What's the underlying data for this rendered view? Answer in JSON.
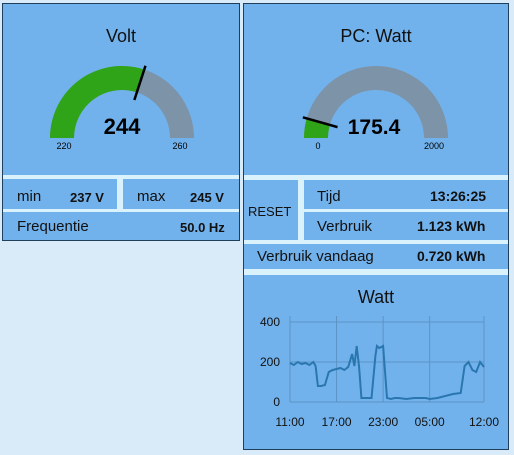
{
  "volt_panel": {
    "title": "Volt",
    "value": 244,
    "min_scale": "220",
    "max_scale": "260",
    "gauge_min": 220,
    "gauge_max": 260,
    "min_label": "min",
    "min_value": "237 V",
    "max_label": "max",
    "max_value": "245 V",
    "freq_label": "Frequentie",
    "freq_value": "50.0 Hz"
  },
  "watt_panel": {
    "title": "PC: Watt",
    "value": 175.4,
    "min_scale": "0",
    "max_scale": "2000",
    "gauge_min": 0,
    "gauge_max": 2000,
    "reset_label": "RESET",
    "tijd_label": "Tijd",
    "tijd_value": "13:26:25",
    "verbruik_label": "Verbruik",
    "verbruik_value": "1.123 kWh",
    "vandaag_label": "Verbruik vandaag",
    "vandaag_value": "0.720 kWh"
  },
  "colors": {
    "panel_bg": "#72b2ec",
    "page_bg": "#d9ebf9",
    "gauge_fill": "#2fa418",
    "gauge_track": "#7c93a8",
    "line": "#2a77b0"
  },
  "chart_data": {
    "type": "line",
    "title": "Watt",
    "xlabel": "",
    "ylabel": "",
    "ylim": [
      0,
      400
    ],
    "yticks": [
      "400",
      "200",
      "0"
    ],
    "xticks": [
      "11:00",
      "17:00",
      "23:00",
      "05:00",
      "12:00"
    ],
    "grid": true,
    "x": [
      11.0,
      11.5,
      12.0,
      12.5,
      13.0,
      13.5,
      14.0,
      14.3,
      14.6,
      15.0,
      15.5,
      16.0,
      16.5,
      17.0,
      17.5,
      18.0,
      18.5,
      19.0,
      19.3,
      19.6,
      19.9,
      20.2,
      20.5,
      21.0,
      21.5,
      22.0,
      22.2,
      22.5,
      23.0,
      23.5,
      24.0,
      24.5,
      25.0,
      26.0,
      27.0,
      28.0,
      28.5,
      29.0,
      30.0,
      31.0,
      32.0,
      33.0,
      33.5,
      34.0,
      34.5,
      35.0,
      35.5,
      36.0
    ],
    "values": [
      195,
      185,
      200,
      190,
      195,
      185,
      200,
      180,
      80,
      80,
      85,
      150,
      160,
      165,
      170,
      160,
      175,
      240,
      180,
      280,
      175,
      20,
      20,
      20,
      20,
      230,
      280,
      270,
      280,
      20,
      15,
      20,
      20,
      15,
      20,
      20,
      20,
      15,
      20,
      30,
      40,
      45,
      180,
      200,
      160,
      150,
      200,
      175
    ]
  }
}
